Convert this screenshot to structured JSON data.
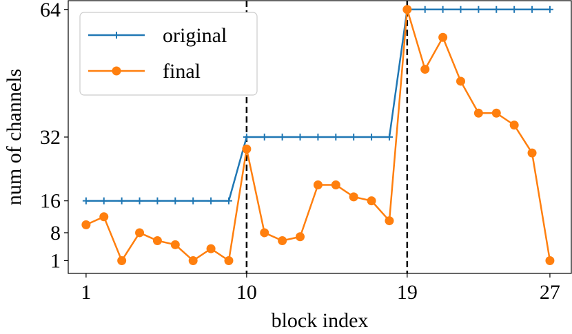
{
  "chart_data": {
    "type": "line",
    "xlabel": "block index",
    "ylabel": "num of channels",
    "xlim": [
      0.0,
      28.2
    ],
    "ylim": [
      -2.2,
      66.2
    ],
    "x_ticks": [
      1,
      10,
      19,
      27
    ],
    "y_ticks": [
      1,
      8,
      16,
      32,
      64
    ],
    "vlines": [
      10,
      19
    ],
    "grid": false,
    "legend_position": "top-left",
    "series": [
      {
        "name": "original",
        "color": "#1f77b4",
        "marker": "plus",
        "x": [
          1,
          2,
          3,
          4,
          5,
          6,
          7,
          8,
          9,
          10,
          11,
          12,
          13,
          14,
          15,
          16,
          17,
          18,
          19,
          20,
          21,
          22,
          23,
          24,
          25,
          26,
          27
        ],
        "y": [
          16,
          16,
          16,
          16,
          16,
          16,
          16,
          16,
          16,
          32,
          32,
          32,
          32,
          32,
          32,
          32,
          32,
          32,
          64,
          64,
          64,
          64,
          64,
          64,
          64,
          64,
          64
        ]
      },
      {
        "name": "final",
        "color": "#ff7f0e",
        "marker": "circle",
        "x": [
          1,
          2,
          3,
          4,
          5,
          6,
          7,
          8,
          9,
          10,
          11,
          12,
          13,
          14,
          15,
          16,
          17,
          18,
          19,
          20,
          21,
          22,
          23,
          24,
          25,
          26,
          27
        ],
        "y": [
          10,
          12,
          1,
          8,
          6,
          5,
          1,
          4,
          1,
          29,
          8,
          6,
          7,
          20,
          20,
          17,
          16,
          11,
          64,
          49,
          57,
          46,
          38,
          38,
          35,
          28,
          1
        ]
      }
    ]
  }
}
